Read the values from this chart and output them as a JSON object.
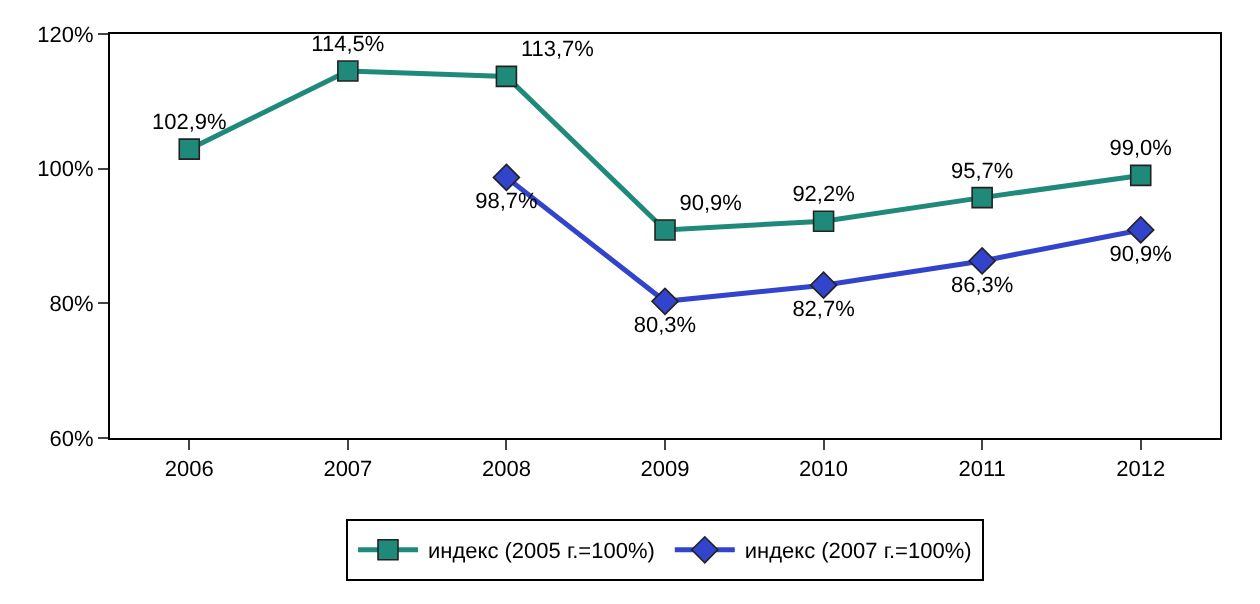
{
  "chart_data": {
    "type": "line",
    "categories": [
      "2006",
      "2007",
      "2008",
      "2009",
      "2010",
      "2011",
      "2012"
    ],
    "series": [
      {
        "name": "индекс (2005 г.=100%)",
        "color": "#1f8a7a",
        "marker": "square",
        "values": [
          102.9,
          114.5,
          113.7,
          90.9,
          92.2,
          95.7,
          99.0
        ],
        "value_labels": [
          "102,9%",
          "114,5%",
          "113,7%",
          "90,9%",
          "92,2%",
          "95,7%",
          "99,0%"
        ]
      },
      {
        "name": "индекс (2007 г.=100%)",
        "color": "#3344cc",
        "marker": "diamond",
        "values": [
          null,
          null,
          98.7,
          80.3,
          82.7,
          86.3,
          90.9
        ],
        "value_labels": [
          null,
          null,
          "98,7%",
          "80,3%",
          "82,7%",
          "86,3%",
          "90,9%"
        ]
      }
    ],
    "ylim": [
      60,
      120
    ],
    "yticks": [
      {
        "value": 60,
        "label": "60%"
      },
      {
        "value": 80,
        "label": "80%"
      },
      {
        "value": 100,
        "label": "100%"
      },
      {
        "value": 120,
        "label": "120%"
      }
    ],
    "legend": "bottom",
    "line_style": "solid"
  }
}
